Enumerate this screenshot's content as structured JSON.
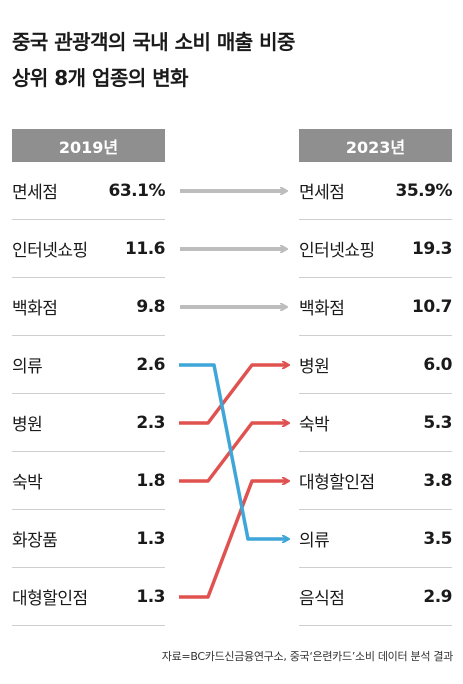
{
  "title_line1": "중국 관광객의 국내 소비 매출 비중",
  "title_line2": "상위 8개 업종의 변화",
  "source": "자료=BC카드신금융연구소, 중국‘은련카드’소비 데이터 분석 결과",
  "colors": {
    "header": "#8f8f8f",
    "gray_arrow": "#bdbdbd",
    "up": "#e0524f",
    "down": "#3ea6d8"
  },
  "chart_data": {
    "type": "slope",
    "title": "중국 관광객의 국내 소비 매출 비중 상위 8개 업종의 변화",
    "left": {
      "year": "2019년",
      "rows": [
        {
          "name": "면세점",
          "value": "63.1%"
        },
        {
          "name": "인터넷쇼핑",
          "value": "11.6"
        },
        {
          "name": "백화점",
          "value": "9.8"
        },
        {
          "name": "의류",
          "value": "2.6"
        },
        {
          "name": "병원",
          "value": "2.3"
        },
        {
          "name": "숙박",
          "value": "1.8"
        },
        {
          "name": "화장품",
          "value": "1.3"
        },
        {
          "name": "대형할인점",
          "value": "1.3"
        }
      ]
    },
    "right": {
      "year": "2023년",
      "rows": [
        {
          "name": "면세점",
          "value": "35.9%"
        },
        {
          "name": "인터넷쇼핑",
          "value": "19.3"
        },
        {
          "name": "백화점",
          "value": "10.7"
        },
        {
          "name": "병원",
          "value": "6.0"
        },
        {
          "name": "숙박",
          "value": "5.3"
        },
        {
          "name": "대형할인점",
          "value": "3.8"
        },
        {
          "name": "의류",
          "value": "3.5"
        },
        {
          "name": "음식점",
          "value": "2.9"
        }
      ]
    },
    "links": [
      {
        "category": "면세점",
        "from_rank": 1,
        "to_rank": 1,
        "trend": "same"
      },
      {
        "category": "인터넷쇼핑",
        "from_rank": 2,
        "to_rank": 2,
        "trend": "same"
      },
      {
        "category": "백화점",
        "from_rank": 3,
        "to_rank": 3,
        "trend": "same"
      },
      {
        "category": "의류",
        "from_rank": 4,
        "to_rank": 7,
        "trend": "down"
      },
      {
        "category": "병원",
        "from_rank": 5,
        "to_rank": 4,
        "trend": "up"
      },
      {
        "category": "숙박",
        "from_rank": 6,
        "to_rank": 5,
        "trend": "up"
      },
      {
        "category": "대형할인점",
        "from_rank": 8,
        "to_rank": 6,
        "trend": "up"
      }
    ]
  }
}
